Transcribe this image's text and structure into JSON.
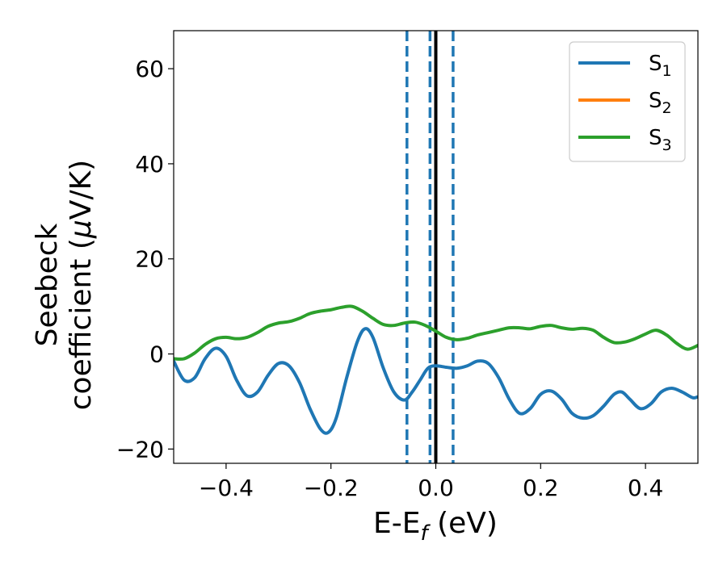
{
  "chart_data": {
    "type": "line",
    "xlabel": {
      "main": "E-E",
      "sub": "f",
      "unit": " (eV)"
    },
    "ylabel": {
      "line1": "Seebeck",
      "line2_prefix": "coefficient  (",
      "line2_mu": "μ",
      "line2_suffix": "V/K)"
    },
    "xlim": [
      -0.5,
      0.5
    ],
    "ylim": [
      -23,
      68
    ],
    "xticks": [
      -0.4,
      -0.2,
      0.0,
      0.2,
      0.4
    ],
    "xtick_labels": [
      "−0.4",
      "−0.2",
      "0.0",
      "0.2",
      "0.4"
    ],
    "yticks": [
      -20,
      0,
      20,
      40,
      60
    ],
    "ytick_labels": [
      "−20",
      "0",
      "20",
      "40",
      "60"
    ],
    "grid": false,
    "legend_position": "top-right",
    "vertical_lines": [
      {
        "x": 0.0,
        "style": "solid",
        "color": "#000000"
      },
      {
        "x": -0.055,
        "style": "dashed",
        "color": "#1f77b4"
      },
      {
        "x": -0.011,
        "style": "dashed",
        "color": "#1f77b4"
      },
      {
        "x": 0.033,
        "style": "dashed",
        "color": "#1f77b4"
      }
    ],
    "series": [
      {
        "name": "S",
        "sub": "1",
        "color": "#1f77b4",
        "points": [
          [
            -0.5,
            -1.5
          ],
          [
            -0.48,
            -5.5
          ],
          [
            -0.46,
            -5.0
          ],
          [
            -0.44,
            -1.0
          ],
          [
            -0.42,
            1.2
          ],
          [
            -0.4,
            -0.5
          ],
          [
            -0.38,
            -5.5
          ],
          [
            -0.36,
            -8.8
          ],
          [
            -0.34,
            -8.0
          ],
          [
            -0.32,
            -4.5
          ],
          [
            -0.3,
            -2.0
          ],
          [
            -0.28,
            -2.5
          ],
          [
            -0.26,
            -6.0
          ],
          [
            -0.24,
            -11.5
          ],
          [
            -0.22,
            -15.8
          ],
          [
            -0.205,
            -16.5
          ],
          [
            -0.19,
            -13.5
          ],
          [
            -0.17,
            -5.0
          ],
          [
            -0.15,
            2.5
          ],
          [
            -0.135,
            5.3
          ],
          [
            -0.12,
            3.5
          ],
          [
            -0.1,
            -3.0
          ],
          [
            -0.08,
            -8.0
          ],
          [
            -0.06,
            -9.7
          ],
          [
            -0.045,
            -8.0
          ],
          [
            -0.03,
            -5.5
          ],
          [
            -0.015,
            -3.0
          ],
          [
            0.0,
            -2.5
          ],
          [
            0.02,
            -2.8
          ],
          [
            0.04,
            -3.0
          ],
          [
            0.06,
            -2.5
          ],
          [
            0.08,
            -1.5
          ],
          [
            0.1,
            -2.0
          ],
          [
            0.12,
            -5.0
          ],
          [
            0.14,
            -9.5
          ],
          [
            0.16,
            -12.5
          ],
          [
            0.18,
            -11.5
          ],
          [
            0.2,
            -8.5
          ],
          [
            0.22,
            -7.8
          ],
          [
            0.24,
            -9.5
          ],
          [
            0.26,
            -12.5
          ],
          [
            0.28,
            -13.5
          ],
          [
            0.3,
            -13.0
          ],
          [
            0.32,
            -11.0
          ],
          [
            0.34,
            -8.5
          ],
          [
            0.355,
            -8.0
          ],
          [
            0.37,
            -9.5
          ],
          [
            0.39,
            -11.5
          ],
          [
            0.41,
            -10.5
          ],
          [
            0.43,
            -8.0
          ],
          [
            0.45,
            -7.2
          ],
          [
            0.47,
            -8.0
          ],
          [
            0.49,
            -9.2
          ],
          [
            0.5,
            -9.0
          ]
        ]
      },
      {
        "name": "S",
        "sub": "2",
        "color": "#ff7f0e",
        "points": []
      },
      {
        "name": "S",
        "sub": "3",
        "color": "#2ca02c",
        "points": [
          [
            -0.5,
            -1.0
          ],
          [
            -0.48,
            -1.0
          ],
          [
            -0.46,
            0.2
          ],
          [
            -0.44,
            2.0
          ],
          [
            -0.42,
            3.2
          ],
          [
            -0.4,
            3.5
          ],
          [
            -0.38,
            3.2
          ],
          [
            -0.36,
            3.5
          ],
          [
            -0.34,
            4.5
          ],
          [
            -0.32,
            5.8
          ],
          [
            -0.3,
            6.5
          ],
          [
            -0.28,
            6.8
          ],
          [
            -0.26,
            7.5
          ],
          [
            -0.24,
            8.5
          ],
          [
            -0.22,
            9.0
          ],
          [
            -0.2,
            9.3
          ],
          [
            -0.18,
            9.8
          ],
          [
            -0.16,
            10.0
          ],
          [
            -0.14,
            9.0
          ],
          [
            -0.12,
            7.5
          ],
          [
            -0.1,
            6.2
          ],
          [
            -0.08,
            6.0
          ],
          [
            -0.06,
            6.5
          ],
          [
            -0.04,
            6.7
          ],
          [
            -0.02,
            6.0
          ],
          [
            0.0,
            4.8
          ],
          [
            0.02,
            3.5
          ],
          [
            0.04,
            3.0
          ],
          [
            0.06,
            3.3
          ],
          [
            0.08,
            4.0
          ],
          [
            0.1,
            4.5
          ],
          [
            0.12,
            5.0
          ],
          [
            0.14,
            5.5
          ],
          [
            0.16,
            5.5
          ],
          [
            0.18,
            5.3
          ],
          [
            0.2,
            5.8
          ],
          [
            0.22,
            6.0
          ],
          [
            0.24,
            5.5
          ],
          [
            0.26,
            5.2
          ],
          [
            0.28,
            5.4
          ],
          [
            0.3,
            5.0
          ],
          [
            0.32,
            3.5
          ],
          [
            0.34,
            2.4
          ],
          [
            0.36,
            2.5
          ],
          [
            0.38,
            3.2
          ],
          [
            0.4,
            4.2
          ],
          [
            0.42,
            5.0
          ],
          [
            0.44,
            4.0
          ],
          [
            0.46,
            2.2
          ],
          [
            0.48,
            1.0
          ],
          [
            0.5,
            1.8
          ]
        ]
      }
    ]
  }
}
